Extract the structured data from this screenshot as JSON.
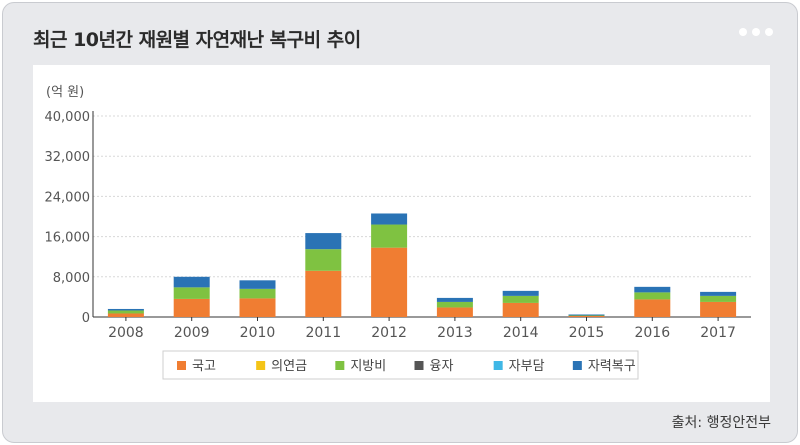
{
  "header": {
    "title": "최근 10년간 재원별 자연재난 복구비 추이"
  },
  "footer": {
    "source": "출처: 행정안전부"
  },
  "chart_data": {
    "type": "bar",
    "stacked": true,
    "unit_label": "(억 원)",
    "categories": [
      "2008",
      "2009",
      "2010",
      "2011",
      "2012",
      "2013",
      "2014",
      "2015",
      "2016",
      "2017"
    ],
    "y_ticks": [
      "0",
      "8,000",
      "16,000",
      "24,000",
      "32,000",
      "40,000"
    ],
    "ylim": [
      0,
      40000
    ],
    "grid": true,
    "legend_position": "bottom",
    "series": [
      {
        "name": "국고",
        "color": "#f07d32",
        "values": [
          700,
          3600,
          3700,
          9200,
          13800,
          1900,
          2800,
          200,
          3500,
          3000
        ]
      },
      {
        "name": "의연금",
        "color": "#f4c417",
        "values": [
          0,
          0,
          0,
          0,
          0,
          0,
          0,
          0,
          0,
          0
        ]
      },
      {
        "name": "지방비",
        "color": "#7fc241",
        "values": [
          600,
          2300,
          1900,
          4300,
          4600,
          1100,
          1400,
          100,
          1400,
          1200
        ]
      },
      {
        "name": "융자",
        "color": "#555555",
        "values": [
          0,
          0,
          0,
          0,
          0,
          0,
          0,
          0,
          0,
          0
        ]
      },
      {
        "name": "자부담",
        "color": "#3fb7e6",
        "values": [
          0,
          0,
          0,
          0,
          0,
          0,
          0,
          0,
          0,
          0
        ]
      },
      {
        "name": "자력복구",
        "color": "#2a73b5",
        "values": [
          300,
          2100,
          1700,
          3200,
          2200,
          800,
          1000,
          200,
          1100,
          800
        ]
      }
    ]
  }
}
